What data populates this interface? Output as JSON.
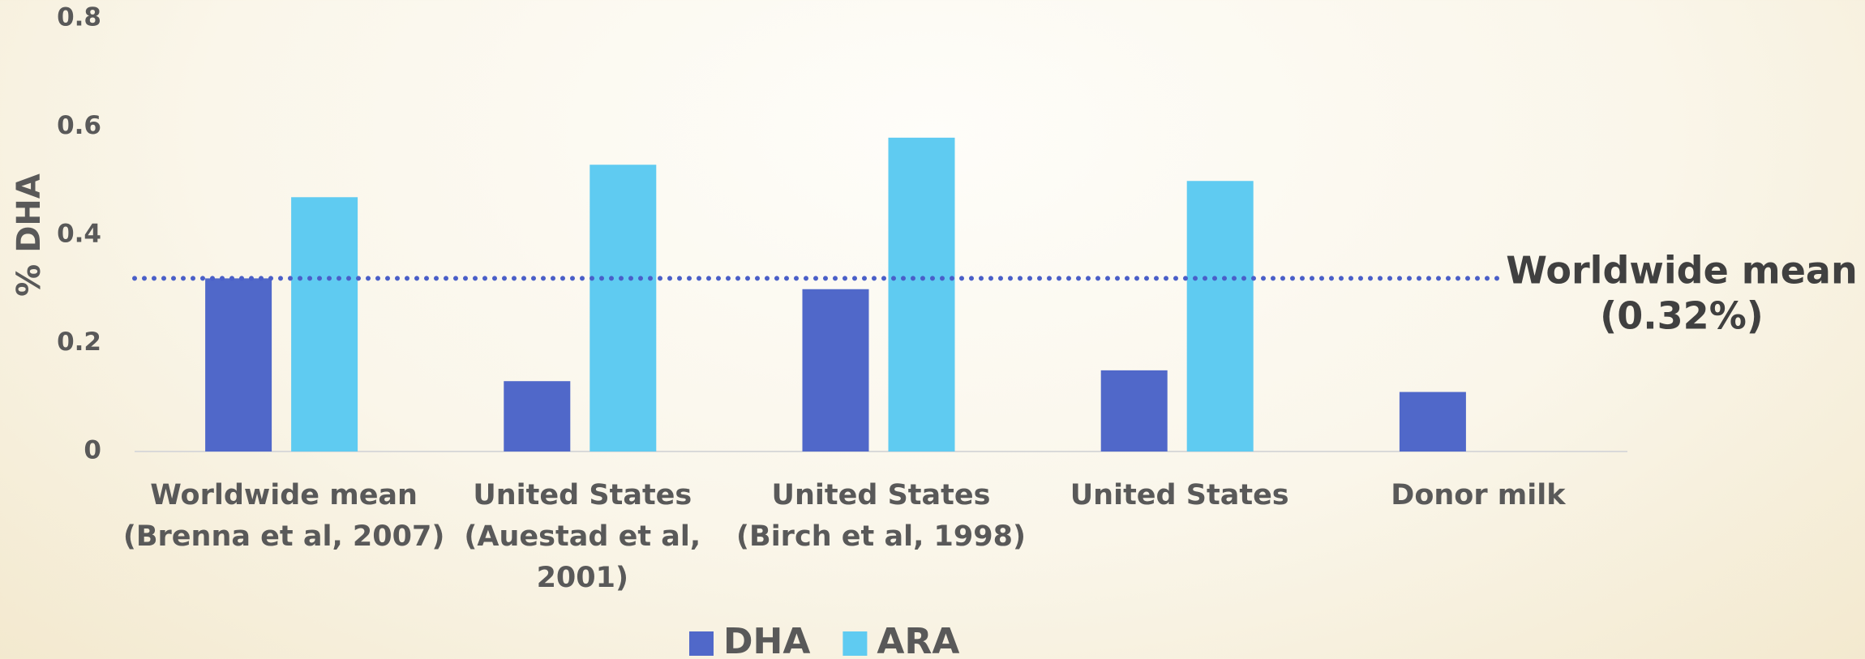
{
  "chart_data": {
    "type": "bar",
    "y_label": "% DHA",
    "categories": [
      [
        "Worldwide mean",
        "(Brenna et al, 2007)"
      ],
      [
        "United States",
        "(Auestad et al,",
        "2001)"
      ],
      [
        "United States",
        "(Birch et al, 1998)"
      ],
      [
        "United States"
      ],
      [
        "Donor milk"
      ]
    ],
    "series": [
      {
        "name": "DHA",
        "color": "#5068c9",
        "values": [
          0.32,
          0.13,
          0.3,
          0.15,
          0.11
        ]
      },
      {
        "name": "ARA",
        "color": "#5fcbf1",
        "values": [
          0.47,
          0.53,
          0.58,
          0.5,
          null
        ]
      }
    ],
    "ylim": [
      0,
      0.8
    ],
    "yticks": [
      0,
      0.2,
      0.4,
      0.6,
      0.8
    ],
    "reference_line": {
      "value": 0.32,
      "color": "#4a5fc8",
      "label": [
        "Worldwide mean",
        "(0.32%)"
      ]
    },
    "legend": "bottom"
  }
}
